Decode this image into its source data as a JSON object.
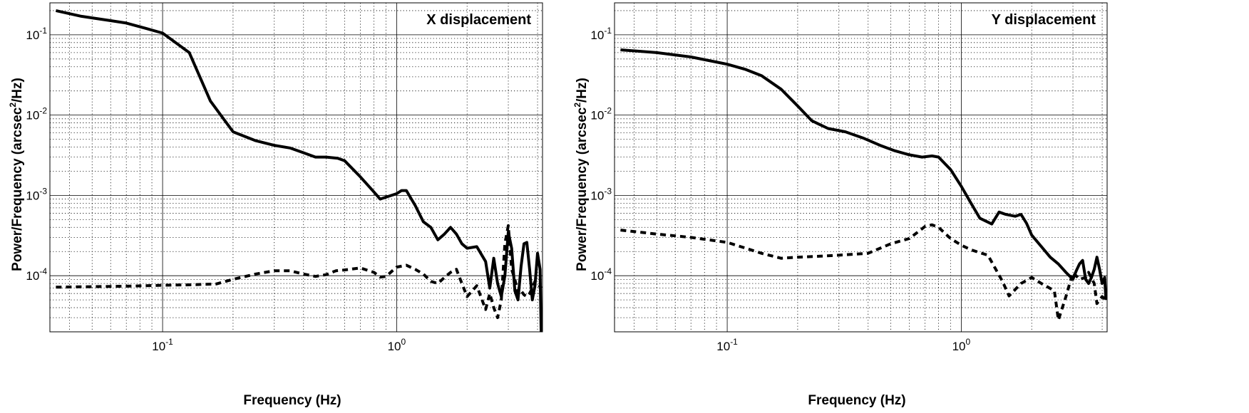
{
  "chart_data": [
    {
      "type": "line",
      "title": "X displacement",
      "xlabel": "Frequency (Hz)",
      "ylabel": "Power/Frequency (arcsec",
      "ylabel_sup": "2",
      "ylabel_tail": "/Hz)",
      "xscale": "log",
      "yscale": "log",
      "xlim": [
        0.033,
        4.2
      ],
      "ylim": [
        2e-05,
        0.25
      ],
      "grid": true,
      "x_ticks": [
        {
          "base": "10",
          "exp": "-1",
          "value": 0.1
        },
        {
          "base": "10",
          "exp": "0",
          "value": 1
        }
      ],
      "y_ticks": [
        {
          "base": "10",
          "exp": "-4",
          "value": 0.0001
        },
        {
          "base": "10",
          "exp": "-3",
          "value": 0.001
        },
        {
          "base": "10",
          "exp": "-2",
          "value": 0.01
        },
        {
          "base": "10",
          "exp": "-1",
          "value": 0.1
        }
      ],
      "series": [
        {
          "style": "solid",
          "x": [
            0.035,
            0.045,
            0.06,
            0.07,
            0.085,
            0.1,
            0.13,
            0.16,
            0.2,
            0.25,
            0.3,
            0.35,
            0.4,
            0.45,
            0.5,
            0.56,
            0.6,
            0.7,
            0.8,
            0.85,
            0.9,
            1.0,
            1.05,
            1.1,
            1.2,
            1.3,
            1.4,
            1.5,
            1.6,
            1.7,
            1.8,
            1.9,
            2.0,
            2.2,
            2.4,
            2.5,
            2.6,
            2.7,
            2.8,
            2.9,
            3.0,
            3.1,
            3.2,
            3.3,
            3.4,
            3.5,
            3.6,
            3.7,
            3.8,
            3.9,
            4.0,
            4.1,
            4.15
          ],
          "y": [
            0.2,
            0.17,
            0.15,
            0.14,
            0.12,
            0.105,
            0.06,
            0.015,
            0.0062,
            0.0048,
            0.0042,
            0.0039,
            0.0034,
            0.003,
            0.003,
            0.0029,
            0.0027,
            0.0017,
            0.0011,
            0.0009,
            0.00095,
            0.00105,
            0.00115,
            0.00115,
            0.00075,
            0.00047,
            0.0004,
            0.00028,
            0.00033,
            0.0004,
            0.00033,
            0.00025,
            0.00022,
            0.00023,
            0.00015,
            7e-05,
            0.000165,
            8e-05,
            5.5e-05,
            0.0001,
            0.00035,
            0.00022,
            6.5e-05,
            5e-05,
            0.00013,
            0.00025,
            0.00026,
            0.00012,
            5e-05,
            7.5e-05,
            0.00019,
            0.00012,
            1.5e-05
          ]
        },
        {
          "style": "dashed",
          "x": [
            0.035,
            0.05,
            0.07,
            0.1,
            0.13,
            0.17,
            0.2,
            0.25,
            0.3,
            0.35,
            0.4,
            0.45,
            0.5,
            0.55,
            0.6,
            0.7,
            0.8,
            0.85,
            0.9,
            1.0,
            1.1,
            1.2,
            1.3,
            1.4,
            1.5,
            1.6,
            1.7,
            1.8,
            1.9,
            2.0,
            2.2,
            2.4,
            2.5,
            2.6,
            2.7,
            2.8,
            2.9,
            3.0,
            3.1,
            3.2,
            3.3,
            3.4,
            3.5,
            3.6,
            3.7,
            3.8,
            3.9,
            4.0,
            4.15
          ],
          "y": [
            7.2e-05,
            7.3e-05,
            7.4e-05,
            7.6e-05,
            7.7e-05,
            7.9e-05,
            9e-05,
            0.000105,
            0.000115,
            0.000115,
            0.000105,
            9.8e-05,
            0.000103,
            0.000115,
            0.000118,
            0.000125,
            0.00011,
            9.6e-05,
            9.8e-05,
            0.000128,
            0.000135,
            0.00012,
            0.000105,
            8.5e-05,
            8e-05,
            9.5e-05,
            0.00011,
            0.00012,
            8e-05,
            5.5e-05,
            7.5e-05,
            3.8e-05,
            6e-05,
            4e-05,
            3e-05,
            5e-05,
            0.00025,
            0.00042,
            0.00012,
            9e-05,
            6e-05,
            6.5e-05,
            5.8e-05,
            5.5e-05,
            6e-05,
            7e-05,
            8.5e-05,
            8e-05,
            7e-05
          ]
        }
      ]
    },
    {
      "type": "line",
      "title": "Y displacement",
      "xlabel": "Frequency (Hz)",
      "ylabel": "Power/Frequency (arcsec",
      "ylabel_sup": "2",
      "ylabel_tail": "/Hz)",
      "xscale": "log",
      "yscale": "log",
      "xlim": [
        0.033,
        4.2
      ],
      "ylim": [
        2e-05,
        0.25
      ],
      "grid": true,
      "x_ticks": [
        {
          "base": "10",
          "exp": "-1",
          "value": 0.1
        },
        {
          "base": "10",
          "exp": "0",
          "value": 1
        }
      ],
      "y_ticks": [
        {
          "base": "10",
          "exp": "-4",
          "value": 0.0001
        },
        {
          "base": "10",
          "exp": "-3",
          "value": 0.001
        },
        {
          "base": "10",
          "exp": "-2",
          "value": 0.01
        },
        {
          "base": "10",
          "exp": "-1",
          "value": 0.1
        }
      ],
      "series": [
        {
          "style": "solid",
          "x": [
            0.035,
            0.05,
            0.07,
            0.1,
            0.12,
            0.14,
            0.17,
            0.2,
            0.23,
            0.27,
            0.32,
            0.38,
            0.45,
            0.52,
            0.6,
            0.68,
            0.75,
            0.8,
            0.9,
            1.0,
            1.1,
            1.2,
            1.35,
            1.45,
            1.55,
            1.7,
            1.8,
            1.9,
            2.0,
            2.2,
            2.4,
            2.6,
            2.8,
            3.0,
            3.1,
            3.2,
            3.3,
            3.4,
            3.5,
            3.6,
            3.7,
            3.8,
            3.9,
            4.0,
            4.1,
            4.15
          ],
          "y": [
            0.065,
            0.06,
            0.053,
            0.043,
            0.037,
            0.031,
            0.021,
            0.013,
            0.0085,
            0.0068,
            0.0062,
            0.0052,
            0.0042,
            0.0036,
            0.0032,
            0.003,
            0.0031,
            0.003,
            0.0021,
            0.0013,
            0.0008,
            0.00052,
            0.00044,
            0.00062,
            0.00058,
            0.00055,
            0.00058,
            0.00045,
            0.00032,
            0.00023,
            0.00017,
            0.00014,
            0.00011,
            9e-05,
            0.000115,
            0.00014,
            0.000155,
            9e-05,
            8e-05,
            9.5e-05,
            0.00012,
            0.00017,
            0.00012,
            8e-05,
            9.5e-05,
            5e-05
          ]
        },
        {
          "style": "dashed",
          "x": [
            0.035,
            0.05,
            0.07,
            0.1,
            0.12,
            0.14,
            0.17,
            0.2,
            0.25,
            0.3,
            0.4,
            0.5,
            0.6,
            0.7,
            0.75,
            0.8,
            0.9,
            1.0,
            1.1,
            1.3,
            1.5,
            1.6,
            1.8,
            2.0,
            2.2,
            2.5,
            2.6,
            2.8,
            3.0,
            3.2,
            3.4,
            3.5,
            3.7,
            3.8,
            4.0,
            4.15
          ],
          "y": [
            0.00037,
            0.00033,
            0.0003,
            0.00026,
            0.00022,
            0.00019,
            0.000165,
            0.00017,
            0.000175,
            0.00018,
            0.00019,
            0.00025,
            0.00029,
            0.00041,
            0.00043,
            0.0004,
            0.00029,
            0.00024,
            0.00021,
            0.00018,
            8.5e-05,
            5.6e-05,
            8e-05,
            9.5e-05,
            8e-05,
            6.5e-05,
            2.8e-05,
            5.5e-05,
            0.00011,
            9e-05,
            9.5e-05,
            0.00011,
            8e-05,
            4.5e-05,
            5.5e-05,
            5e-05
          ]
        }
      ]
    }
  ]
}
